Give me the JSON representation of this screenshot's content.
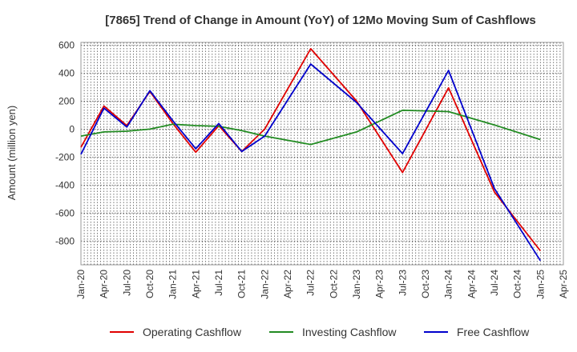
{
  "chart_data": {
    "type": "line",
    "title": "[7865]  Trend of Change in Amount (YoY) of 12Mo Moving Sum of Cashflows",
    "xlabel": "",
    "ylabel": "Amount (million yen)",
    "ylim": [
      -970,
      620
    ],
    "yticks": [
      600,
      400,
      200,
      0,
      -200,
      -400,
      -600,
      -800
    ],
    "categories": [
      "Jan-20",
      "Apr-20",
      "Jul-20",
      "Oct-20",
      "Jan-21",
      "Apr-21",
      "Jul-21",
      "Oct-21",
      "Jan-22",
      "Apr-22",
      "Jul-22",
      "Oct-22",
      "Jan-23",
      "Apr-23",
      "Jul-23",
      "Oct-23",
      "Jan-24",
      "Apr-24",
      "Jul-24",
      "Oct-24",
      "Jan-25",
      "Apr-25"
    ],
    "grid": true,
    "legend_position": "bottom",
    "series": [
      {
        "name": "Operating Cashflow",
        "color": "#e00000",
        "values": [
          -130,
          165,
          25,
          270,
          40,
          -165,
          25,
          -160,
          0,
          null,
          575,
          null,
          200,
          null,
          -310,
          null,
          295,
          null,
          -450,
          null,
          -870,
          null
        ]
      },
      {
        "name": "Investing Cashflow",
        "color": "#228b22",
        "values": [
          -50,
          -20,
          -15,
          0,
          35,
          25,
          20,
          -10,
          -50,
          null,
          -110,
          null,
          -20,
          null,
          135,
          null,
          125,
          null,
          30,
          null,
          -75,
          null
        ]
      },
      {
        "name": "Free Cashflow",
        "color": "#0000cc",
        "values": [
          -180,
          150,
          15,
          275,
          60,
          -140,
          40,
          -160,
          -50,
          null,
          465,
          null,
          190,
          null,
          -175,
          null,
          420,
          null,
          -425,
          null,
          -940,
          null
        ]
      }
    ]
  }
}
